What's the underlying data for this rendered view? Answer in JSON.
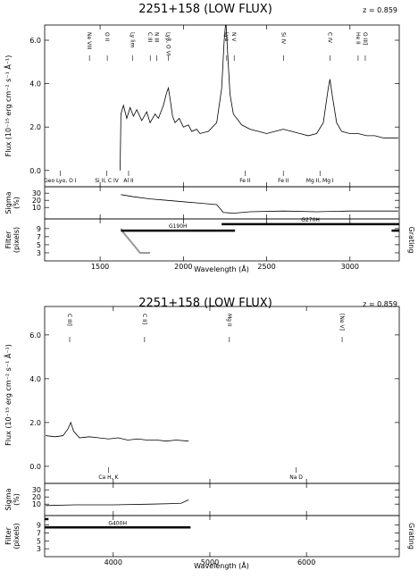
{
  "chart_data": [
    {
      "type": "line",
      "title": "2251+158 (LOW FLUX)",
      "redshift": "z = 0.859",
      "xlabel": "Wavelength (Å)",
      "grating_label": "Grating",
      "xlim": [
        1167,
        3296
      ],
      "xticks": [
        1500,
        2000,
        2500,
        3000
      ],
      "flux": {
        "ylabel": [
          "Flux (10⁻¹⁵ erg cm⁻² s⁻¹ Å⁻¹)"
        ],
        "ylim": [
          -0.75,
          6.7
        ],
        "yticks": [
          {
            "value": 0,
            "label": "0.0"
          },
          {
            "value": 2,
            "label": "2.0"
          },
          {
            "value": 4,
            "label": "4.0"
          },
          {
            "value": 6,
            "label": "6.0"
          }
        ],
        "x": [
          1620,
          1625,
          1640,
          1660,
          1680,
          1700,
          1720,
          1750,
          1780,
          1800,
          1830,
          1850,
          1870,
          1880,
          1900,
          1910,
          1920,
          1935,
          1950,
          1975,
          2000,
          2030,
          2050,
          2080,
          2100,
          2150,
          2200,
          2230,
          2245,
          2255,
          2265,
          2280,
          2300,
          2350,
          2400,
          2450,
          2500,
          2550,
          2600,
          2650,
          2700,
          2750,
          2800,
          2840,
          2870,
          2880,
          2895,
          2920,
          2950,
          3000,
          3050,
          3100,
          3150,
          3200,
          3250,
          3290
        ],
        "values": [
          0,
          2.6,
          3.0,
          2.4,
          2.9,
          2.5,
          2.8,
          2.3,
          2.7,
          2.2,
          2.6,
          2.4,
          2.8,
          3.0,
          3.6,
          3.8,
          3.3,
          2.5,
          2.2,
          2.4,
          2.0,
          2.1,
          1.8,
          1.9,
          1.7,
          1.8,
          2.2,
          3.8,
          6.0,
          6.9,
          5.5,
          3.5,
          2.6,
          2.1,
          1.9,
          1.8,
          1.7,
          1.8,
          1.9,
          1.8,
          1.7,
          1.6,
          1.7,
          2.2,
          3.8,
          4.2,
          3.4,
          2.2,
          1.8,
          1.7,
          1.7,
          1.6,
          1.6,
          1.5,
          1.5,
          1.5
        ]
      },
      "sigma": {
        "ylabel": [
          "Sigma",
          "(%)"
        ],
        "ylim": [
          -6,
          39
        ],
        "yticks": [
          10,
          20,
          30
        ],
        "x": [
          1625,
          1700,
          1800,
          1900,
          2000,
          2100,
          2200,
          2240,
          2300,
          2400,
          2600,
          2800,
          3000,
          3290
        ],
        "values": [
          28,
          25,
          22,
          20,
          18,
          16,
          14,
          3,
          2,
          4,
          5,
          4,
          5,
          5
        ]
      },
      "filter": {
        "ylabel": [
          "Filter",
          "(pixels)"
        ],
        "ylim": [
          1,
          11.4
        ],
        "yticks": [
          3,
          5,
          7,
          9
        ],
        "x": [
          1625,
          1640,
          1660,
          1680,
          1700,
          1720,
          1740,
          1800
        ],
        "values": [
          9,
          8,
          7,
          6,
          5,
          4,
          3,
          3
        ]
      },
      "gratings": [
        {
          "name": "G190H",
          "x": [
            1625,
            2310
          ],
          "value": 8.5
        },
        {
          "name": "G270H",
          "x": [
            2230,
            3296
          ],
          "value": 10.1
        },
        {
          "x": [
            3250,
            3296
          ],
          "value": 8.5
        }
      ],
      "lines": [
        {
          "label": "Ne VIII",
          "x": 1436
        },
        {
          "label": "O II",
          "x": 1543
        },
        {
          "label": "Ly lim",
          "x": 1694
        },
        {
          "label": "C III",
          "x": 1801
        },
        {
          "label": "N III",
          "x": 1839
        },
        {
          "label": "Lyβ, O VI",
          "x": 1909
        },
        {
          "label": "Lyα",
          "x": 2260
        },
        {
          "label": "N V",
          "x": 2305
        },
        {
          "label": "Si IV",
          "x": 2602
        },
        {
          "label": "C IV",
          "x": 2880
        },
        {
          "label": "He II",
          "x": 3049
        },
        {
          "label": "O III]",
          "x": 3092
        }
      ],
      "ism_lines": [
        {
          "label": "Geo Lyα, O I",
          "x": 1260
        },
        {
          "label": "Si II, C IV",
          "x": 1540
        },
        {
          "label": "Al II",
          "x": 1671
        },
        {
          "label": "Fe II",
          "x": 2370
        },
        {
          "label": "Fe II",
          "x": 2600
        },
        {
          "label": "Mg II, Mg I",
          "x": 2820
        }
      ]
    },
    {
      "type": "line",
      "title": "2251+158 (LOW FLUX)",
      "redshift": "z = 0.859",
      "xlabel": "Wavelength (Å)",
      "grating_label": "Grating",
      "xlim": [
        3290,
        6960
      ],
      "xticks": [
        4000,
        5000,
        6000
      ],
      "flux": {
        "ylabel": [
          "Flux (10⁻¹⁵ erg cm⁻² s⁻¹ Å⁻¹)"
        ],
        "ylim": [
          -0.78,
          7.3
        ],
        "yticks": [
          {
            "value": 0,
            "label": "0.0"
          },
          {
            "value": 2,
            "label": "2.0"
          },
          {
            "value": 4,
            "label": "4.0"
          },
          {
            "value": 6,
            "label": "6.0"
          }
        ],
        "x": [
          3300,
          3400,
          3480,
          3530,
          3560,
          3590,
          3650,
          3750,
          3850,
          3950,
          4050,
          4150,
          4250,
          4350,
          4450,
          4550,
          4650,
          4780
        ],
        "values": [
          1.4,
          1.35,
          1.4,
          1.7,
          2.0,
          1.6,
          1.3,
          1.35,
          1.3,
          1.25,
          1.3,
          1.2,
          1.25,
          1.2,
          1.2,
          1.15,
          1.2,
          1.15
        ]
      },
      "sigma": {
        "ylabel": [
          "Sigma",
          "(%)"
        ],
        "ylim": [
          -6,
          39
        ],
        "yticks": [
          10,
          20,
          30
        ],
        "x": [
          3300,
          3600,
          4000,
          4400,
          4700,
          4780
        ],
        "values": [
          8,
          9,
          9,
          10,
          11,
          16
        ]
      },
      "filter": {
        "ylabel": [
          "Filter",
          "(pixels)"
        ],
        "ylim": [
          1,
          11.4
        ],
        "yticks": [
          3,
          5,
          7,
          9
        ]
      },
      "gratings": [
        {
          "name": "G400H",
          "x": [
            3290,
            4800
          ],
          "value": 8.4
        },
        {
          "x": [
            3290,
            3330
          ],
          "value": 10.5
        }
      ],
      "lines": [
        {
          "label": "C III]",
          "x": 3549
        },
        {
          "label": "C II]",
          "x": 4324
        },
        {
          "label": "Mg II",
          "x": 5202
        },
        {
          "label": "[Ne V]",
          "x": 6369
        }
      ],
      "ism_lines": [
        {
          "label": "Ca H, K",
          "x": 3950
        },
        {
          "label": "Na D",
          "x": 5893
        }
      ]
    }
  ]
}
